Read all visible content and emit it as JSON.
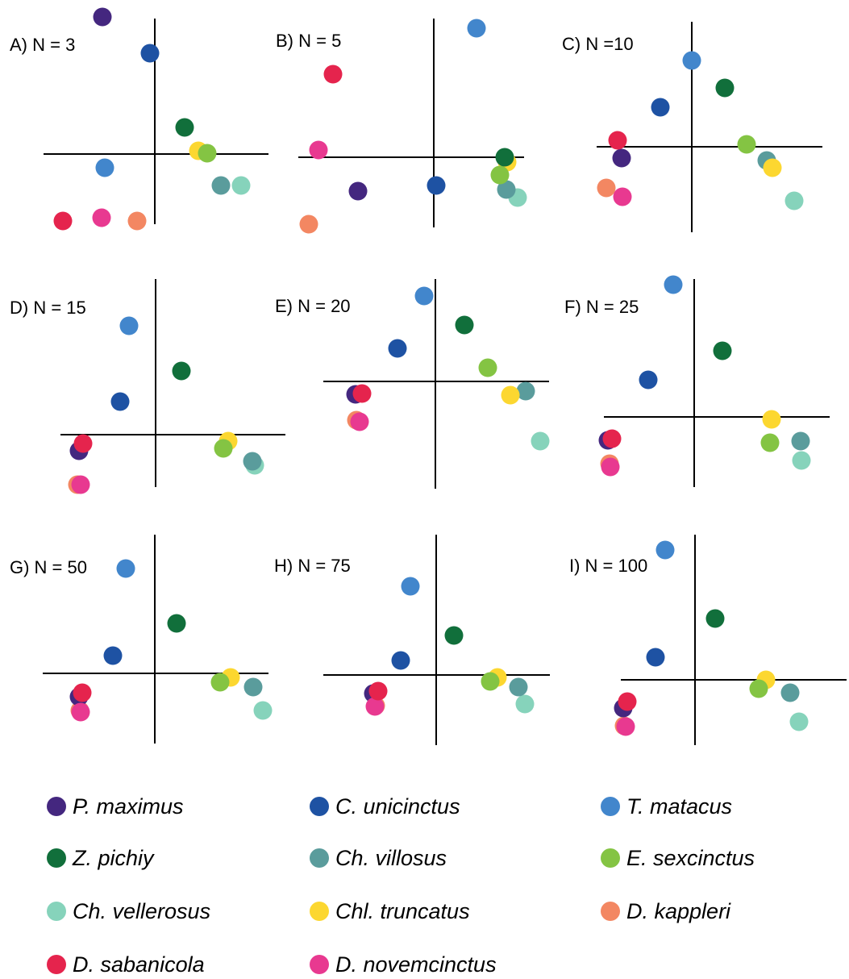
{
  "species": [
    {
      "name": "P. maximus",
      "color": "#44277f"
    },
    {
      "name": "C. unicinctus",
      "color": "#1e52a3"
    },
    {
      "name": "T. matacus",
      "color": "#4286cc"
    },
    {
      "name": "Z. pichiy",
      "color": "#116f3b"
    },
    {
      "name": "Ch. villosus",
      "color": "#5a9c9c"
    },
    {
      "name": "E. sexcinctus",
      "color": "#84c443"
    },
    {
      "name": "Ch. vellerosus",
      "color": "#86d3bb"
    },
    {
      "name": "Chl. truncatus",
      "color": "#fcd730"
    },
    {
      "name": "D. kappleri",
      "color": "#f38762"
    },
    {
      "name": "D. sabanicola",
      "color": "#e5244d"
    },
    {
      "name": "D. novemcinctus",
      "color": "#e83990"
    }
  ],
  "chart_data": [
    {
      "type": "scatter",
      "title": "A) N = 3",
      "points": [
        {
          "species": "P. maximus",
          "x": -65,
          "y": 170
        },
        {
          "species": "C. unicinctus",
          "x": -6,
          "y": 125
        },
        {
          "species": "T. matacus",
          "x": -62,
          "y": -17
        },
        {
          "species": "Z. pichiy",
          "x": 37,
          "y": 33
        },
        {
          "species": "Ch. villosus",
          "x": 82,
          "y": -39
        },
        {
          "species": "E. sexcinctus",
          "x": 65,
          "y": 1
        },
        {
          "species": "Ch. vellerosus",
          "x": 107,
          "y": -39
        },
        {
          "species": "Chl. truncatus",
          "x": 54,
          "y": 4
        },
        {
          "species": "D. kappleri",
          "x": -22,
          "y": -83
        },
        {
          "species": "D. sabanicola",
          "x": -114,
          "y": -83
        },
        {
          "species": "D. novemcinctus",
          "x": -66,
          "y": -79
        }
      ]
    },
    {
      "type": "scatter",
      "title": "B) N = 5",
      "points": [
        {
          "species": "P. maximus",
          "x": -94,
          "y": -42
        },
        {
          "species": "C. unicinctus",
          "x": 3,
          "y": -35
        },
        {
          "species": "T. matacus",
          "x": 53,
          "y": 160
        },
        {
          "species": "Z. pichiy",
          "x": 88,
          "y": 0
        },
        {
          "species": "Ch. villosus",
          "x": 90,
          "y": -40
        },
        {
          "species": "E. sexcinctus",
          "x": 82,
          "y": -22
        },
        {
          "species": "Ch. vellerosus",
          "x": 104,
          "y": -50
        },
        {
          "species": "Chl. truncatus",
          "x": 91,
          "y": -6
        },
        {
          "species": "D. kappleri",
          "x": -155,
          "y": -83
        },
        {
          "species": "D. sabanicola",
          "x": -125,
          "y": 103
        },
        {
          "species": "D. novemcinctus",
          "x": -143,
          "y": 9
        }
      ]
    },
    {
      "type": "scatter",
      "title": "C) N =10",
      "points": [
        {
          "species": "P. maximus",
          "x": -87,
          "y": -14
        },
        {
          "species": "C. unicinctus",
          "x": -39,
          "y": 49
        },
        {
          "species": "T. matacus",
          "x": 0,
          "y": 107
        },
        {
          "species": "Z. pichiy",
          "x": 41,
          "y": 73
        },
        {
          "species": "Ch. villosus",
          "x": 93,
          "y": -17
        },
        {
          "species": "E. sexcinctus",
          "x": 68,
          "y": 3
        },
        {
          "species": "Ch. vellerosus",
          "x": 127,
          "y": -67
        },
        {
          "species": "Chl. truncatus",
          "x": 100,
          "y": -26
        },
        {
          "species": "D. kappleri",
          "x": -106,
          "y": -51
        },
        {
          "species": "D. sabanicola",
          "x": -92,
          "y": 8
        },
        {
          "species": "D. novemcinctus",
          "x": -86,
          "y": -62
        }
      ]
    },
    {
      "type": "scatter",
      "title": "D) N = 15",
      "points": [
        {
          "species": "P. maximus",
          "x": -95,
          "y": -20
        },
        {
          "species": "C. unicinctus",
          "x": -44,
          "y": 41
        },
        {
          "species": "T. matacus",
          "x": -33,
          "y": 135
        },
        {
          "species": "Z. pichiy",
          "x": 32,
          "y": 79
        },
        {
          "species": "Ch. villosus",
          "x": 120,
          "y": -33
        },
        {
          "species": "E. sexcinctus",
          "x": 84,
          "y": -17
        },
        {
          "species": "Ch. vellerosus",
          "x": 123,
          "y": -38
        },
        {
          "species": "Chl. truncatus",
          "x": 90,
          "y": -8
        },
        {
          "species": "D. kappleri",
          "x": -97,
          "y": -62
        },
        {
          "species": "D. sabanicola",
          "x": -90,
          "y": -11
        },
        {
          "species": "D. novemcinctus",
          "x": -93,
          "y": -62
        }
      ]
    },
    {
      "type": "scatter",
      "title": "E) N = 20",
      "points": [
        {
          "species": "P. maximus",
          "x": -99,
          "y": -16
        },
        {
          "species": "C. unicinctus",
          "x": -47,
          "y": 41
        },
        {
          "species": "T. matacus",
          "x": -14,
          "y": 106
        },
        {
          "species": "Z. pichiy",
          "x": 36,
          "y": 70
        },
        {
          "species": "Ch. villosus",
          "x": 112,
          "y": -12
        },
        {
          "species": "E. sexcinctus",
          "x": 65,
          "y": 17
        },
        {
          "species": "Ch. vellerosus",
          "x": 130,
          "y": -74
        },
        {
          "species": "Chl. truncatus",
          "x": 93,
          "y": -17
        },
        {
          "species": "D. kappleri",
          "x": -98,
          "y": -48
        },
        {
          "species": "D. sabanicola",
          "x": -91,
          "y": -15
        },
        {
          "species": "D. novemcinctus",
          "x": -94,
          "y": -50
        }
      ]
    },
    {
      "type": "scatter",
      "title": "F) N = 25",
      "points": [
        {
          "species": "P. maximus",
          "x": -107,
          "y": -29
        },
        {
          "species": "C. unicinctus",
          "x": -57,
          "y": 46
        },
        {
          "species": "T. matacus",
          "x": -26,
          "y": 164
        },
        {
          "species": "Z. pichiy",
          "x": 35,
          "y": 82
        },
        {
          "species": "Ch. villosus",
          "x": 132,
          "y": -30
        },
        {
          "species": "E. sexcinctus",
          "x": 94,
          "y": -32
        },
        {
          "species": "Ch. vellerosus",
          "x": 133,
          "y": -54
        },
        {
          "species": "Chl. truncatus",
          "x": 96,
          "y": -3
        },
        {
          "species": "D. kappleri",
          "x": -105,
          "y": -58
        },
        {
          "species": "D. sabanicola",
          "x": -102,
          "y": -27
        },
        {
          "species": "D. novemcinctus",
          "x": -104,
          "y": -62
        }
      ]
    },
    {
      "type": "scatter",
      "title": "G) N = 50",
      "points": [
        {
          "species": "P. maximus",
          "x": -94,
          "y": -29
        },
        {
          "species": "C. unicinctus",
          "x": -52,
          "y": 22
        },
        {
          "species": "T. matacus",
          "x": -36,
          "y": 130
        },
        {
          "species": "Z. pichiy",
          "x": 27,
          "y": 62
        },
        {
          "species": "Ch. villosus",
          "x": 122,
          "y": -17
        },
        {
          "species": "E. sexcinctus",
          "x": 81,
          "y": -11
        },
        {
          "species": "Ch. vellerosus",
          "x": 134,
          "y": -46
        },
        {
          "species": "Chl. truncatus",
          "x": 94,
          "y": -5
        },
        {
          "species": "D. kappleri",
          "x": -93,
          "y": -46
        },
        {
          "species": "D. sabanicola",
          "x": -90,
          "y": -24
        },
        {
          "species": "D. novemcinctus",
          "x": -92,
          "y": -48
        }
      ]
    },
    {
      "type": "scatter",
      "title": "H) N = 75",
      "points": [
        {
          "species": "P. maximus",
          "x": -78,
          "y": -23
        },
        {
          "species": "C. unicinctus",
          "x": -44,
          "y": 18
        },
        {
          "species": "T. matacus",
          "x": -32,
          "y": 110
        },
        {
          "species": "Z. pichiy",
          "x": 22,
          "y": 49
        },
        {
          "species": "Ch. villosus",
          "x": 102,
          "y": -15
        },
        {
          "species": "E. sexcinctus",
          "x": 67,
          "y": -8
        },
        {
          "species": "Ch. vellerosus",
          "x": 110,
          "y": -36
        },
        {
          "species": "Chl. truncatus",
          "x": 76,
          "y": -3
        },
        {
          "species": "D. kappleri",
          "x": -75,
          "y": -38
        },
        {
          "species": "D. sabanicola",
          "x": -72,
          "y": -20
        },
        {
          "species": "D. novemcinctus",
          "x": -76,
          "y": -39
        }
      ]
    },
    {
      "type": "scatter",
      "title": "I) N = 100",
      "points": [
        {
          "species": "P. maximus",
          "x": -89,
          "y": -35
        },
        {
          "species": "C. unicinctus",
          "x": -49,
          "y": 28
        },
        {
          "species": "T. matacus",
          "x": -37,
          "y": 161
        },
        {
          "species": "Z. pichiy",
          "x": 25,
          "y": 76
        },
        {
          "species": "Ch. villosus",
          "x": 118,
          "y": -16
        },
        {
          "species": "E. sexcinctus",
          "x": 79,
          "y": -11
        },
        {
          "species": "Ch. vellerosus",
          "x": 129,
          "y": -52
        },
        {
          "species": "Chl. truncatus",
          "x": 88,
          "y": 0
        },
        {
          "species": "D. kappleri",
          "x": -88,
          "y": -57
        },
        {
          "species": "D. sabanicola",
          "x": -84,
          "y": -27
        },
        {
          "species": "D. novemcinctus",
          "x": -86,
          "y": -58
        }
      ]
    }
  ]
}
